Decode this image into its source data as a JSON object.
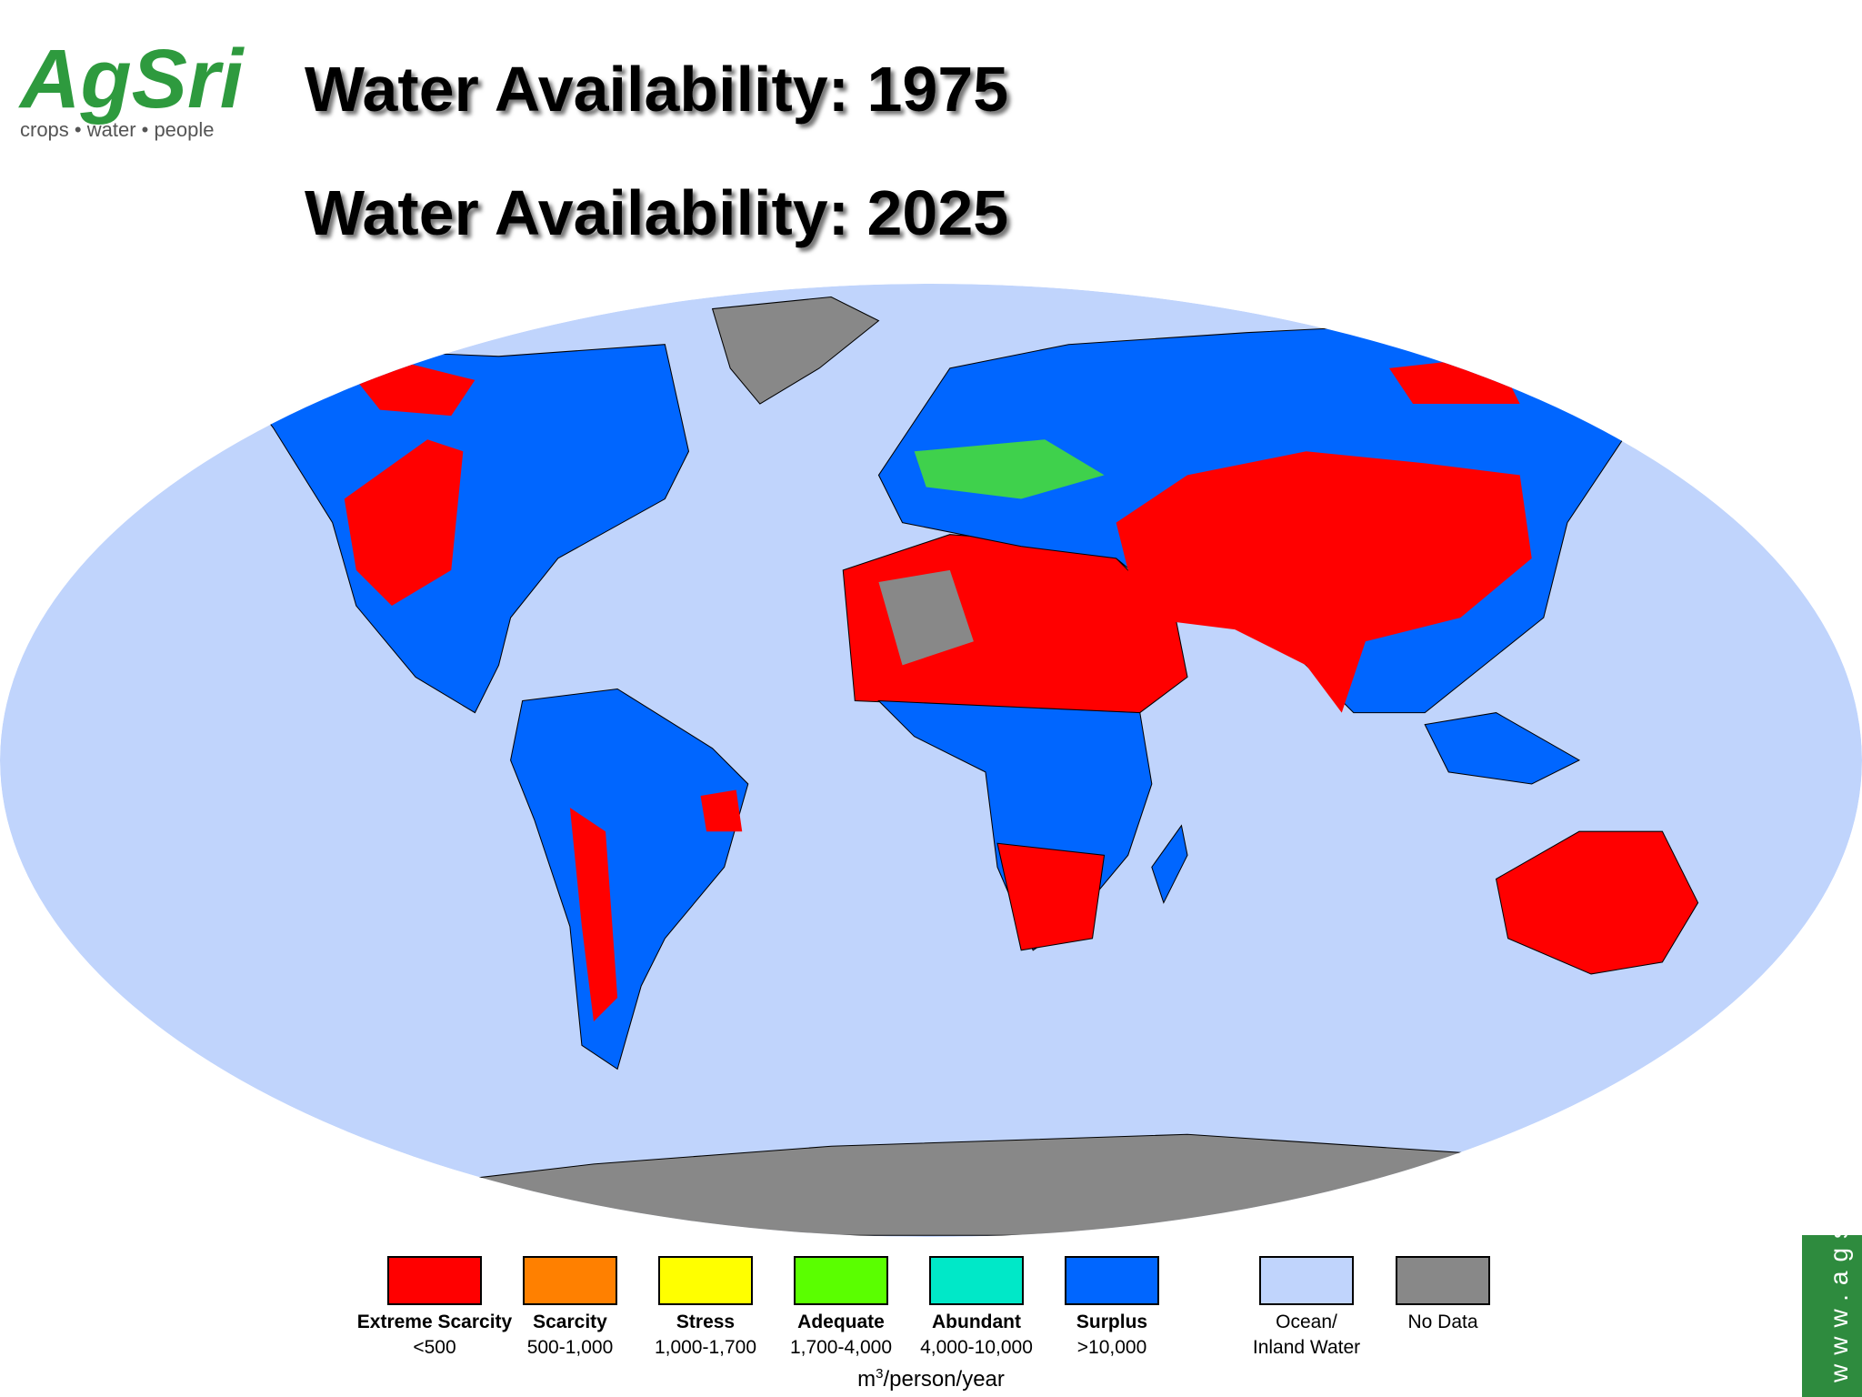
{
  "logo": {
    "name": "AgSri",
    "tagline": "crops •  water  •  people",
    "color": "#2e9a3e"
  },
  "titles": [
    "Water Availability: 1975",
    "Water Availability: 2025"
  ],
  "legend": {
    "classes": [
      {
        "name": "Extreme Scarcity",
        "range": "<500",
        "color": "#ff0000"
      },
      {
        "name": "Scarcity",
        "range": "500-1,000",
        "color": "#ff8000"
      },
      {
        "name": "Stress",
        "range": "1,000-1,700",
        "color": "#ffff00"
      },
      {
        "name": "Adequate",
        "range": "1,700-4,000",
        "color": "#5aff00"
      },
      {
        "name": "Abundant",
        "range": "4,000-10,000",
        "color": "#00e8c8"
      },
      {
        "name": "Surplus",
        "range": ">10,000",
        "color": "#0066ff"
      }
    ],
    "other": [
      {
        "lines": [
          "Ocean/",
          "Inland Water"
        ],
        "color": "#c0d4fc"
      },
      {
        "lines": [
          "No Data"
        ],
        "color": "#888888"
      }
    ],
    "unit": {
      "base": "m",
      "superscript": "3",
      "rest": "/person/year"
    }
  },
  "side_tab": "www.ags"
}
